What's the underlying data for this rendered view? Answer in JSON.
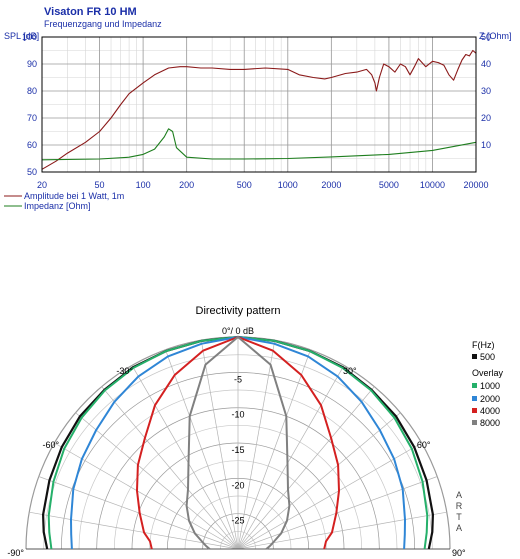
{
  "chart_data": [
    {
      "type": "line",
      "title": "Visaton FR 10 HM",
      "subtitle": "Frequenzgang und Impedanz",
      "ylabel_left": "SPL [dB]",
      "ylabel_right": "Z [Ohm]",
      "x_scale": "log",
      "xlim": [
        20,
        20000
      ],
      "ylim_left": [
        50,
        100
      ],
      "ylim_right": [
        0,
        50
      ],
      "x_ticks": [
        "20",
        "50",
        "100",
        "200",
        "500",
        "1000",
        "2000",
        "5000",
        "10000",
        "20000"
      ],
      "y_ticks_left": [
        "50",
        "60",
        "70",
        "80",
        "90",
        "100"
      ],
      "y_ticks_right": [
        "10",
        "20",
        "30",
        "40",
        "50"
      ],
      "grid": true,
      "legend": [
        "Amplitude bei 1 Watt, 1m",
        "Impedanz [Ohm]"
      ],
      "series": [
        {
          "name": "Amplitude bei 1 Watt, 1m",
          "axis": "left",
          "color": "#8b1a1a",
          "x": [
            20,
            25,
            30,
            40,
            50,
            60,
            70,
            80,
            100,
            120,
            150,
            180,
            200,
            250,
            300,
            400,
            500,
            700,
            1000,
            1200,
            1500,
            1800,
            2000,
            2500,
            3000,
            3500,
            3800,
            4000,
            4100,
            4300,
            4600,
            5000,
            5500,
            6000,
            6500,
            7000,
            7500,
            8000,
            9000,
            10000,
            11000,
            12000,
            13000,
            14000,
            15000,
            16000,
            17000,
            18000,
            19000,
            20000
          ],
          "y": [
            51,
            54,
            57,
            61,
            65,
            70,
            75,
            79,
            83,
            86,
            88.5,
            89,
            89,
            88.5,
            88.5,
            88,
            88,
            88.5,
            88,
            86,
            85,
            84.5,
            85,
            86.5,
            87,
            88,
            86,
            83,
            80,
            85,
            90,
            89,
            87,
            90,
            89,
            86,
            89,
            92,
            89,
            91,
            90.5,
            89.5,
            86,
            84,
            88,
            91.5,
            93.5,
            93,
            95,
            94
          ]
        },
        {
          "name": "Impedanz [Ohm]",
          "axis": "right",
          "color": "#1e7e1e",
          "x": [
            20,
            50,
            80,
            100,
            120,
            140,
            150,
            160,
            170,
            200,
            300,
            500,
            1000,
            2000,
            5000,
            10000,
            20000
          ],
          "y": [
            4.5,
            4.8,
            5.5,
            6.5,
            8.5,
            13,
            16,
            15,
            9,
            5.5,
            4.8,
            4.8,
            5,
            5.6,
            6.5,
            8,
            11
          ]
        }
      ]
    },
    {
      "type": "polar",
      "title": "Directivity pattern",
      "angle_labels": [
        "0°/ 0 dB",
        "-30°",
        "30°",
        "-60°",
        "60°",
        "-90°",
        "90°"
      ],
      "radial_ticks_db": [
        "-5",
        "-10",
        "-15",
        "-20",
        "-25"
      ],
      "rlim_db": [
        -30,
        0
      ],
      "watermark": "ARTA",
      "legend": {
        "header": "F(Hz)",
        "main_label": "500",
        "overlay_header": "Overlay",
        "overlay_labels": [
          "1000",
          "2000",
          "4000",
          "8000"
        ]
      },
      "series": [
        {
          "name": "500",
          "color": "#111111",
          "angles_deg": [
            0,
            10,
            20,
            30,
            40,
            50,
            60,
            70,
            80,
            85,
            90
          ],
          "db": [
            0,
            -0.1,
            -0.2,
            -0.3,
            -0.6,
            -0.8,
            -1.2,
            -1.6,
            -2.0,
            -2.4,
            -3.0
          ]
        },
        {
          "name": "1000",
          "color": "#25b06a",
          "angles_deg": [
            0,
            10,
            20,
            30,
            40,
            50,
            60,
            70,
            80,
            85,
            90
          ],
          "db": [
            0,
            -0.1,
            -0.2,
            -0.4,
            -0.7,
            -1.1,
            -1.6,
            -2.2,
            -2.8,
            -3.2,
            -3.6
          ]
        },
        {
          "name": "2000",
          "color": "#2f86d6",
          "angles_deg": [
            0,
            10,
            20,
            30,
            40,
            50,
            60,
            70,
            80,
            85,
            90
          ],
          "db": [
            0,
            -0.5,
            -1.0,
            -1.8,
            -2.8,
            -3.8,
            -4.5,
            -5.2,
            -6.0,
            -6.3,
            -6.5
          ]
        },
        {
          "name": "4000",
          "color": "#d42020",
          "angles_deg": [
            0,
            10,
            20,
            30,
            40,
            50,
            60,
            70,
            80,
            85,
            90
          ],
          "db": [
            0,
            -1.5,
            -3.8,
            -6.5,
            -9.5,
            -11.5,
            -13.5,
            -15.2,
            -16.5,
            -17.5,
            -17.8
          ]
        },
        {
          "name": "8000",
          "color": "#808080",
          "angles_deg": [
            0,
            10,
            20,
            30,
            40,
            50,
            60,
            70,
            80,
            85,
            90
          ],
          "db": [
            0,
            -3.5,
            -10,
            -16,
            -19,
            -20.5,
            -22,
            -23.5,
            -25,
            -25.5,
            -26
          ]
        }
      ]
    }
  ]
}
